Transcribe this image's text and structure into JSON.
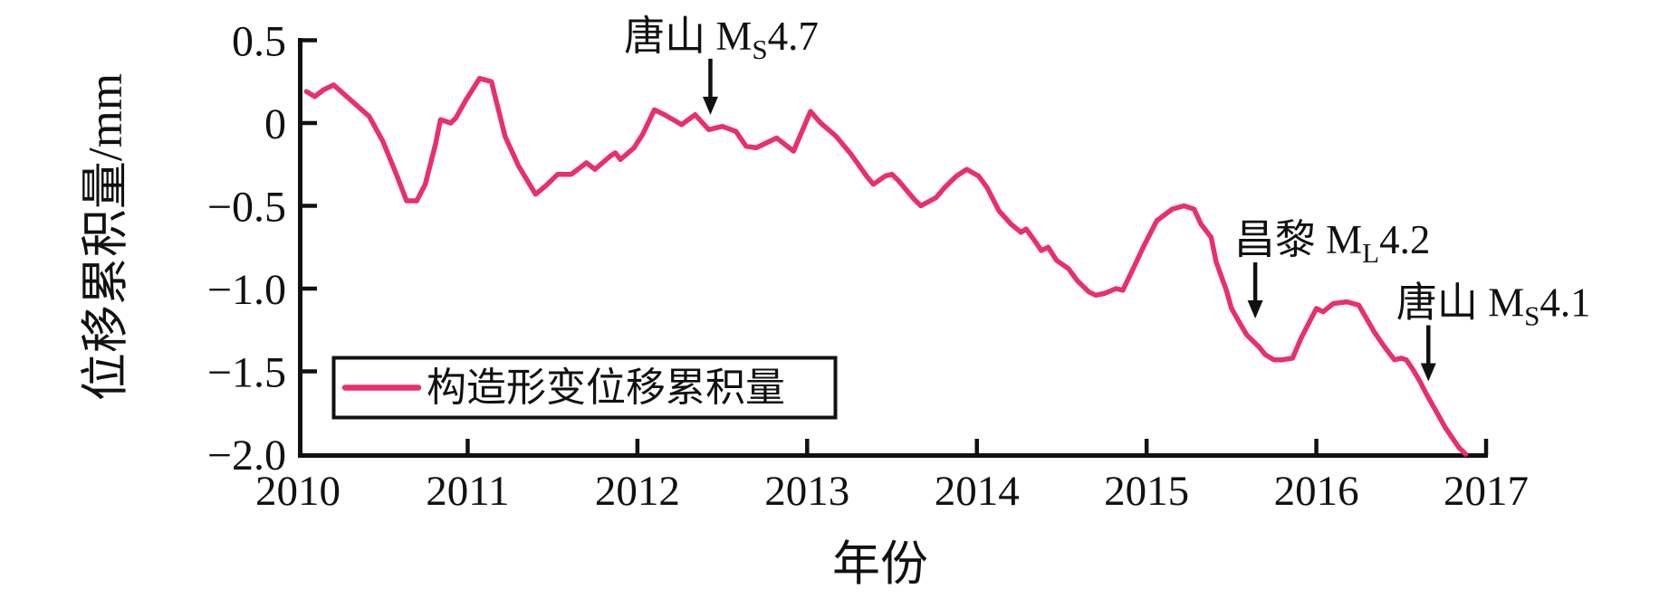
{
  "chart_data": {
    "type": "line",
    "title": "",
    "xlabel": "年份",
    "ylabel": "位移累积量/mm",
    "xlim": [
      2010,
      2017
    ],
    "ylim": [
      -2.0,
      0.5
    ],
    "grid": false,
    "x_ticks": [
      "2010",
      "2011",
      "2012",
      "2013",
      "2014",
      "2015",
      "2016",
      "2017"
    ],
    "x_tick_values": [
      2010,
      2011,
      2012,
      2013,
      2014,
      2015,
      2016,
      2017
    ],
    "y_ticks": [
      "0.5",
      "0",
      "−0.5",
      "−1.0",
      "−1.5",
      "−2.0"
    ],
    "y_tick_values": [
      0.5,
      0,
      -0.5,
      -1.0,
      -1.5,
      -2.0
    ],
    "legend": {
      "label": "构造形变位移累积量",
      "position": "lower-left"
    },
    "series": [
      {
        "name": "构造形变位移累积量",
        "color": "#e8306a",
        "points": [
          [
            2010.05,
            0.19
          ],
          [
            2010.1,
            0.16
          ],
          [
            2010.15,
            0.2
          ],
          [
            2010.21,
            0.23
          ],
          [
            2010.31,
            0.14
          ],
          [
            2010.42,
            0.04
          ],
          [
            2010.5,
            -0.11
          ],
          [
            2010.58,
            -0.31
          ],
          [
            2010.64,
            -0.47
          ],
          [
            2010.7,
            -0.47
          ],
          [
            2010.75,
            -0.37
          ],
          [
            2010.81,
            -0.13
          ],
          [
            2010.84,
            0.02
          ],
          [
            2010.9,
            0.0
          ],
          [
            2010.93,
            0.03
          ],
          [
            2010.99,
            0.14
          ],
          [
            2011.07,
            0.27
          ],
          [
            2011.14,
            0.25
          ],
          [
            2011.22,
            -0.08
          ],
          [
            2011.3,
            -0.26
          ],
          [
            2011.4,
            -0.43
          ],
          [
            2011.46,
            -0.38
          ],
          [
            2011.53,
            -0.31
          ],
          [
            2011.61,
            -0.31
          ],
          [
            2011.7,
            -0.24
          ],
          [
            2011.75,
            -0.28
          ],
          [
            2011.84,
            -0.2
          ],
          [
            2011.87,
            -0.18
          ],
          [
            2011.9,
            -0.22
          ],
          [
            2011.98,
            -0.15
          ],
          [
            2012.03,
            -0.07
          ],
          [
            2012.1,
            0.08
          ],
          [
            2012.16,
            0.05
          ],
          [
            2012.21,
            0.02
          ],
          [
            2012.26,
            -0.01
          ],
          [
            2012.34,
            0.05
          ],
          [
            2012.42,
            -0.04
          ],
          [
            2012.5,
            -0.02
          ],
          [
            2012.58,
            -0.05
          ],
          [
            2012.64,
            -0.14
          ],
          [
            2012.7,
            -0.15
          ],
          [
            2012.82,
            -0.09
          ],
          [
            2012.92,
            -0.17
          ],
          [
            2013.02,
            0.07
          ],
          [
            2013.08,
            0.0
          ],
          [
            2013.17,
            -0.08
          ],
          [
            2013.26,
            -0.19
          ],
          [
            2013.35,
            -0.32
          ],
          [
            2013.39,
            -0.37
          ],
          [
            2013.46,
            -0.32
          ],
          [
            2013.5,
            -0.31
          ],
          [
            2013.54,
            -0.35
          ],
          [
            2013.63,
            -0.46
          ],
          [
            2013.67,
            -0.5
          ],
          [
            2013.76,
            -0.45
          ],
          [
            2013.81,
            -0.39
          ],
          [
            2013.88,
            -0.32
          ],
          [
            2013.94,
            -0.28
          ],
          [
            2014.01,
            -0.32
          ],
          [
            2014.06,
            -0.39
          ],
          [
            2014.13,
            -0.53
          ],
          [
            2014.2,
            -0.61
          ],
          [
            2014.26,
            -0.66
          ],
          [
            2014.29,
            -0.64
          ],
          [
            2014.34,
            -0.71
          ],
          [
            2014.38,
            -0.77
          ],
          [
            2014.42,
            -0.75
          ],
          [
            2014.47,
            -0.83
          ],
          [
            2014.54,
            -0.88
          ],
          [
            2014.59,
            -0.95
          ],
          [
            2014.66,
            -1.02
          ],
          [
            2014.7,
            -1.04
          ],
          [
            2014.75,
            -1.03
          ],
          [
            2014.82,
            -1.0
          ],
          [
            2014.86,
            -1.01
          ],
          [
            2014.93,
            -0.86
          ],
          [
            2014.98,
            -0.75
          ],
          [
            2015.06,
            -0.59
          ],
          [
            2015.15,
            -0.52
          ],
          [
            2015.22,
            -0.5
          ],
          [
            2015.28,
            -0.52
          ],
          [
            2015.32,
            -0.61
          ],
          [
            2015.38,
            -0.69
          ],
          [
            2015.41,
            -0.84
          ],
          [
            2015.47,
            -1.01
          ],
          [
            2015.5,
            -1.12
          ],
          [
            2015.55,
            -1.21
          ],
          [
            2015.59,
            -1.28
          ],
          [
            2015.66,
            -1.35
          ],
          [
            2015.7,
            -1.4
          ],
          [
            2015.75,
            -1.43
          ],
          [
            2015.8,
            -1.43
          ],
          [
            2015.86,
            -1.42
          ],
          [
            2015.91,
            -1.3
          ],
          [
            2015.97,
            -1.18
          ],
          [
            2016.0,
            -1.12
          ],
          [
            2016.04,
            -1.14
          ],
          [
            2016.1,
            -1.09
          ],
          [
            2016.18,
            -1.08
          ],
          [
            2016.25,
            -1.1
          ],
          [
            2016.29,
            -1.17
          ],
          [
            2016.34,
            -1.26
          ],
          [
            2016.4,
            -1.35
          ],
          [
            2016.46,
            -1.43
          ],
          [
            2016.5,
            -1.42
          ],
          [
            2016.53,
            -1.43
          ],
          [
            2016.57,
            -1.49
          ],
          [
            2016.61,
            -1.56
          ],
          [
            2016.65,
            -1.64
          ],
          [
            2016.7,
            -1.73
          ],
          [
            2016.76,
            -1.84
          ],
          [
            2016.8,
            -1.9
          ],
          [
            2016.84,
            -1.96
          ],
          [
            2016.88,
            -2.0
          ]
        ]
      }
    ],
    "annotations": [
      {
        "prefix": "唐山 M",
        "sub": "S",
        "suffix": "4.7",
        "x": 2012.43,
        "y": 0.05
      },
      {
        "prefix": "昌黎 M",
        "sub": "L",
        "suffix": "4.2",
        "x": 2015.64,
        "y": -1.18
      },
      {
        "prefix": "唐山 M",
        "sub": "S",
        "suffix": "4.1",
        "x": 2016.66,
        "y": -1.56
      }
    ]
  },
  "colors": {
    "line": "#e8306a",
    "axis": "#111111",
    "background": "#ffffff"
  }
}
